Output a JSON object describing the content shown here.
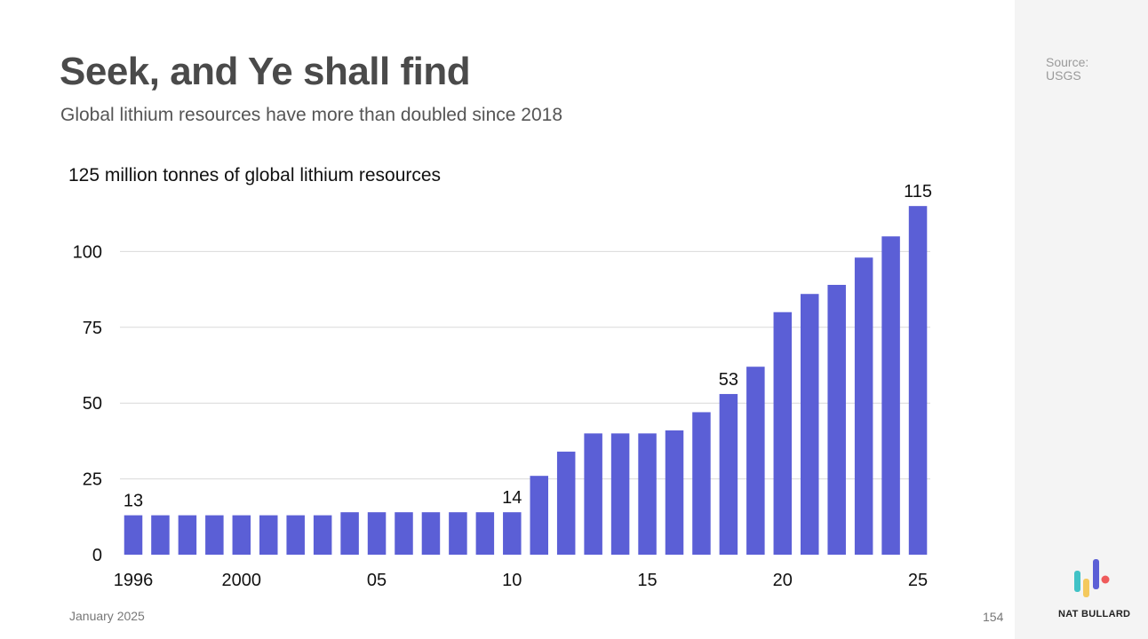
{
  "header": {
    "title": "Seek, and Ye shall find",
    "subtitle": "Global lithium resources have more than doubled since 2018"
  },
  "source": {
    "label": "Source:",
    "value": "USGS"
  },
  "footer": {
    "date": "January 2025",
    "page": "154",
    "brand": "NAT BULLARD"
  },
  "colors": {
    "bar": "#5b5fd6",
    "grid": "#d9d9d9",
    "text": "#111111"
  },
  "chart_data": {
    "type": "bar",
    "title": "125 million tonnes of global lithium resources",
    "xlabel": "",
    "ylabel": "",
    "ylim": [
      0,
      125
    ],
    "yticks": [
      0,
      25,
      50,
      75,
      100
    ],
    "grid": true,
    "categories": [
      "1996",
      "1997",
      "1998",
      "1999",
      "2000",
      "2001",
      "2002",
      "2003",
      "2004",
      "2005",
      "2006",
      "2007",
      "2008",
      "2009",
      "2010",
      "2011",
      "2012",
      "2013",
      "2014",
      "2015",
      "2016",
      "2017",
      "2018",
      "2019",
      "2020",
      "2021",
      "2022",
      "2023",
      "2024",
      "2025"
    ],
    "values": [
      13,
      13,
      13,
      13,
      13,
      13,
      13,
      13,
      14,
      14,
      14,
      14,
      14,
      14,
      14,
      26,
      34,
      40,
      40,
      40,
      41,
      47,
      53,
      62,
      80,
      86,
      89,
      98,
      105,
      115
    ],
    "xtick_labels": [
      {
        "index": 0,
        "label": "1996"
      },
      {
        "index": 4,
        "label": "2000"
      },
      {
        "index": 9,
        "label": "05"
      },
      {
        "index": 14,
        "label": "10"
      },
      {
        "index": 19,
        "label": "15"
      },
      {
        "index": 24,
        "label": "20"
      },
      {
        "index": 29,
        "label": "25"
      }
    ],
    "data_labels": [
      {
        "index": 0,
        "label": "13"
      },
      {
        "index": 14,
        "label": "14"
      },
      {
        "index": 22,
        "label": "53"
      },
      {
        "index": 29,
        "label": "115"
      }
    ]
  }
}
